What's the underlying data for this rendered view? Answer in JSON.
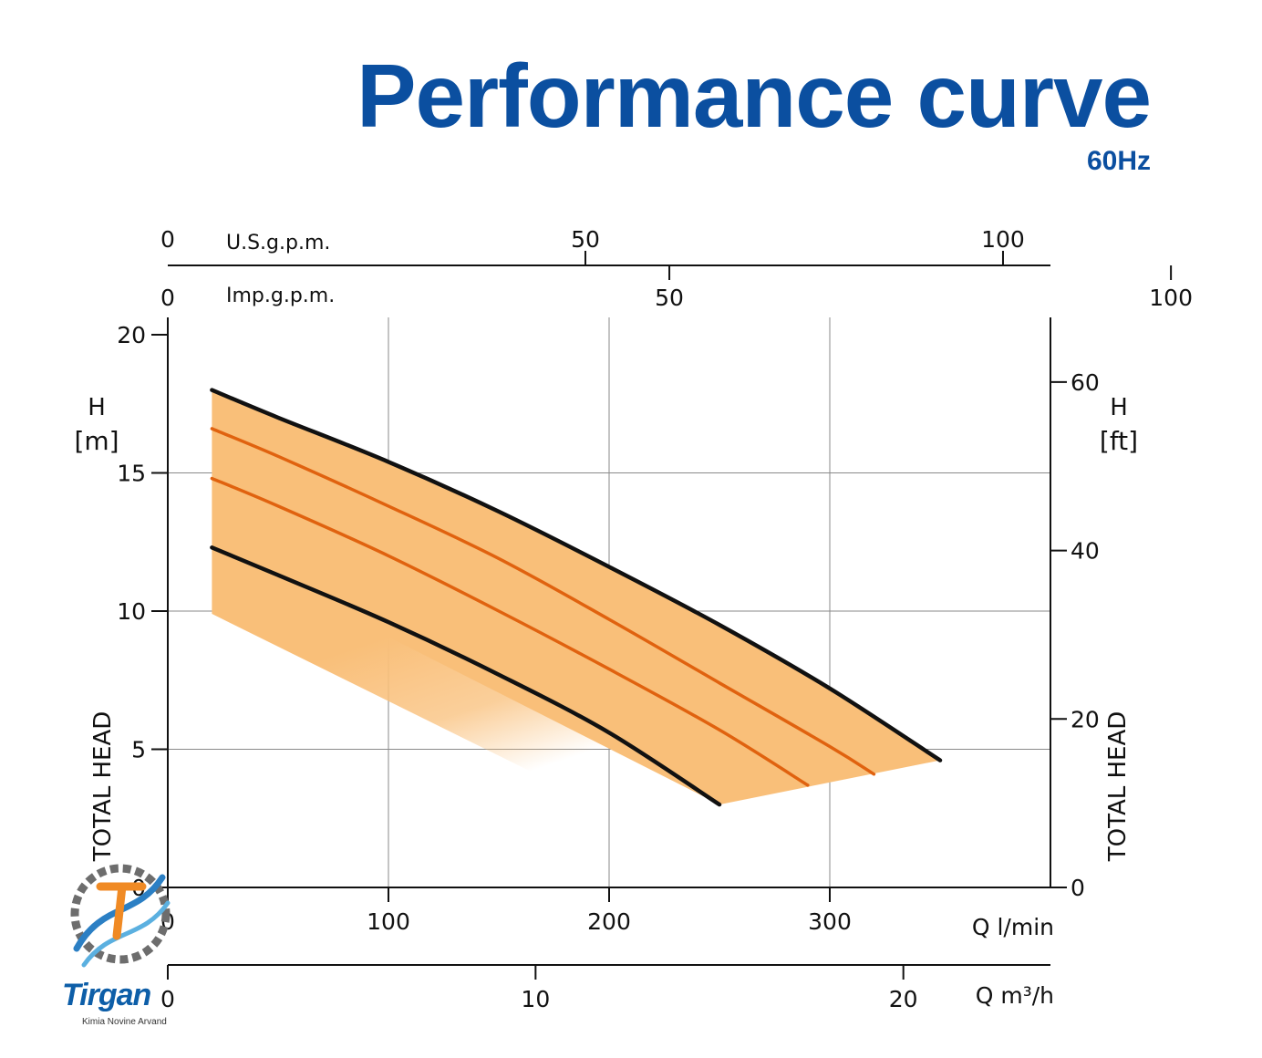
{
  "title": "Performance curve",
  "subtitle": "60Hz",
  "brand": {
    "name": "Tirgan",
    "tagline": "Kimia Novine Arvand"
  },
  "colors": {
    "title": "#0b4fa0",
    "band_fill": "#f9bf79",
    "outer_curve": "#111111",
    "inner_curve": "#e0620f"
  },
  "chart_data": {
    "type": "line",
    "title": "Performance curve",
    "subtitle": "60Hz",
    "grid": true,
    "axes": {
      "x_lpm": {
        "label": "Q l/min",
        "range": [
          0,
          400
        ],
        "ticks": [
          0,
          100,
          200,
          300
        ],
        "tick_labels": [
          "0",
          "100",
          "200",
          "300"
        ]
      },
      "x_m3h": {
        "label": "Q m³/h",
        "ticks": [
          0,
          10,
          20
        ],
        "tick_labels": [
          "0",
          "10",
          "20"
        ],
        "lpm_per_unit": 16.667
      },
      "x_usgpm": {
        "label": "U.S.g.p.m.",
        "ticks": [
          0,
          50,
          100
        ],
        "tick_labels": [
          "0",
          "50",
          "100"
        ],
        "lpm_per_unit": 3.785
      },
      "x_impgpm": {
        "label": "Imp.g.p.m.",
        "ticks": [
          0,
          50,
          100
        ],
        "tick_labels": [
          "0",
          "50",
          "100"
        ],
        "lpm_per_unit": 4.546
      },
      "y_m": {
        "label": "H [m]",
        "side_label": "TOTAL HEAD",
        "range": [
          0,
          20.5
        ],
        "ticks": [
          0,
          5,
          10,
          15,
          20
        ],
        "tick_labels": [
          "0",
          "5",
          "10",
          "15",
          "20"
        ]
      },
      "y_ft": {
        "label": "H [ft]",
        "side_label": "TOTAL HEAD",
        "ticks": [
          0,
          20,
          40,
          60
        ],
        "tick_labels": [
          "0",
          "20",
          "40",
          "60"
        ],
        "m_per_unit": 0.3048
      }
    },
    "series": [
      {
        "kind": "outer",
        "x": [
          20,
          50,
          100,
          150,
          200,
          250,
          300,
          350
        ],
        "y": [
          18.0,
          17.0,
          15.4,
          13.6,
          11.6,
          9.5,
          7.2,
          4.6
        ]
      },
      {
        "kind": "inner",
        "x": [
          20,
          50,
          100,
          150,
          200,
          250,
          300,
          320
        ],
        "y": [
          16.6,
          15.6,
          13.8,
          11.9,
          9.7,
          7.4,
          5.1,
          4.1
        ]
      },
      {
        "kind": "inner",
        "x": [
          20,
          50,
          100,
          150,
          200,
          250,
          290
        ],
        "y": [
          14.8,
          13.8,
          12.0,
          10.0,
          7.9,
          5.7,
          3.7
        ]
      },
      {
        "kind": "outer",
        "x": [
          20,
          50,
          100,
          150,
          200,
          250
        ],
        "y": [
          12.3,
          11.3,
          9.6,
          7.7,
          5.6,
          3.0
        ]
      }
    ]
  }
}
